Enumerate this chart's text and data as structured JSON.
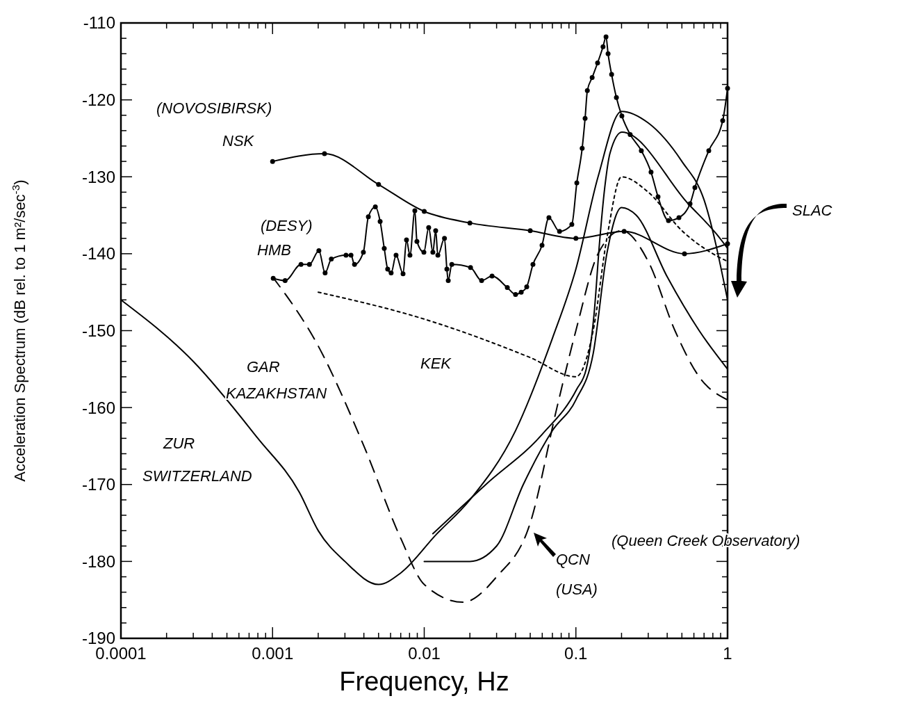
{
  "chart_data": {
    "type": "line",
    "xlabel": "Frequency, Hz",
    "ylabel": "Acceleration Spectrum (dB rel. to 1 m²/sec$^{-3}$)",
    "log": "x",
    "xlim": [
      0.0001,
      1
    ],
    "ylim": [
      -190,
      -110
    ],
    "xticks": [
      0.0001,
      {
        "value": 0.0002,
        "label": null
      },
      {
        "value": 0.0003,
        "label": null
      },
      {
        "value": 0.0004,
        "label": null
      },
      {
        "value": 0.0005,
        "label": null
      },
      {
        "value": 0.0006,
        "label": null
      },
      {
        "value": 0.0007,
        "label": null
      },
      {
        "value": 0.0008,
        "label": null
      },
      {
        "value": 0.0009,
        "label": null
      },
      0.001,
      {
        "value": 0.002,
        "label": null
      },
      {
        "value": 0.003,
        "label": null
      },
      {
        "value": 0.004,
        "label": null
      },
      {
        "value": 0.005,
        "label": null
      },
      {
        "value": 0.006,
        "label": null
      },
      {
        "value": 0.007,
        "label": null
      },
      {
        "value": 0.008,
        "label": null
      },
      {
        "value": 0.009,
        "label": null
      },
      0.01,
      {
        "value": 0.02,
        "label": null
      },
      {
        "value": 0.03,
        "label": null
      },
      {
        "value": 0.04,
        "label": null
      },
      {
        "value": 0.05,
        "label": null
      },
      {
        "value": 0.06,
        "label": null
      },
      {
        "value": 0.07,
        "label": null
      },
      {
        "value": 0.08,
        "label": null
      },
      {
        "value": 0.09,
        "label": null
      },
      0.1,
      {
        "value": 0.2,
        "label": null
      },
      {
        "value": 0.3,
        "label": null
      },
      {
        "value": 0.4,
        "label": null
      },
      {
        "value": 0.5,
        "label": null
      },
      {
        "value": 0.6,
        "label": null
      },
      {
        "value": 0.7,
        "label": null
      },
      {
        "value": 0.8,
        "label": null
      },
      {
        "value": 0.9,
        "label": null
      },
      1
    ],
    "yticks": [
      -190,
      {
        "value": -188,
        "label": null
      },
      {
        "value": -186,
        "label": null
      },
      {
        "value": -184,
        "label": null
      },
      {
        "value": -182,
        "label": null
      },
      -180,
      {
        "value": -178,
        "label": null
      },
      {
        "value": -176,
        "label": null
      },
      {
        "value": -174,
        "label": null
      },
      {
        "value": -172,
        "label": null
      },
      -170,
      {
        "value": -168,
        "label": null
      },
      {
        "value": -166,
        "label": null
      },
      {
        "value": -164,
        "label": null
      },
      {
        "value": -162,
        "label": null
      },
      -160,
      {
        "value": -158,
        "label": null
      },
      {
        "value": -156,
        "label": null
      },
      {
        "value": -154,
        "label": null
      },
      {
        "value": -152,
        "label": null
      },
      -150,
      {
        "value": -148,
        "label": null
      },
      {
        "value": -146,
        "label": null
      },
      {
        "value": -144,
        "label": null
      },
      {
        "value": -142,
        "label": null
      },
      -140,
      {
        "value": -138,
        "label": null
      },
      {
        "value": -136,
        "label": null
      },
      {
        "value": -134,
        "label": null
      },
      {
        "value": -132,
        "label": null
      },
      -130,
      {
        "value": -128,
        "label": null
      },
      {
        "value": -126,
        "label": null
      },
      {
        "value": -124,
        "label": null
      },
      {
        "value": -122,
        "label": null
      },
      -120,
      {
        "value": -118,
        "label": null
      },
      {
        "value": -116,
        "label": null
      },
      {
        "value": -114,
        "label": null
      },
      {
        "value": -112,
        "label": null
      },
      -110
    ],
    "grid": false,
    "series": [
      {
        "color": "#000000",
        "marker": "circle",
        "line_style": "solid",
        "x": [
          0.001,
          0.0022,
          0.005,
          0.01,
          0.02,
          0.05,
          0.1,
          0.208,
          0.52,
          1
        ],
        "values": [
          -128,
          -127,
          -131,
          -134.5,
          -136,
          -137,
          -138,
          -137.1,
          -140,
          -138.7
        ]
      },
      {
        "color": "#000000",
        "marker": "circle",
        "line_style": "solid",
        "x": [
          0.00101,
          0.00121,
          0.00154,
          0.00175,
          0.00202,
          0.00222,
          0.00244,
          0.00305,
          0.00329,
          0.00347,
          0.00397,
          0.00428,
          0.00476,
          0.00512,
          0.00545,
          0.00574,
          0.00605,
          0.00652,
          0.00725,
          0.00764,
          0.00805,
          0.00867,
          0.00895,
          0.00995,
          0.0107,
          0.0114,
          0.0119,
          0.0123,
          0.0136,
          0.0141,
          0.0144,
          0.0152,
          0.0202,
          0.0239,
          0.028,
          0.0353,
          0.04,
          0.0436,
          0.0474,
          0.0521,
          0.0598,
          0.0664,
          0.078,
          0.094,
          0.1014,
          0.11,
          0.115,
          0.119,
          0.128,
          0.139,
          0.151,
          0.158,
          0.163,
          0.172,
          0.185,
          0.201,
          0.228,
          0.27,
          0.313,
          0.348,
          0.408,
          0.478,
          0.566,
          0.609,
          0.752,
          0.929,
          1
        ],
        "values": [
          -143.2,
          -143.5,
          -141.4,
          -141.4,
          -139.6,
          -142.5,
          -140.7,
          -140.2,
          -140.2,
          -141.4,
          -139.8,
          -135.2,
          -133.9,
          -135.8,
          -139.3,
          -142,
          -142.5,
          -140.2,
          -142.6,
          -138.2,
          -140.2,
          -134.4,
          -138.4,
          -139.8,
          -136.6,
          -139.8,
          -137,
          -140.2,
          -138,
          -142,
          -143.5,
          -141.4,
          -141.8,
          -143.5,
          -142.9,
          -144.4,
          -145.3,
          -145,
          -144.3,
          -141.4,
          -138.9,
          -135.3,
          -137.1,
          -136.2,
          -130.8,
          -126.3,
          -122.4,
          -118.8,
          -117.1,
          -115.2,
          -113.1,
          -111.8,
          -114,
          -116.7,
          -119.7,
          -122.1,
          -124.5,
          -126.6,
          -129.4,
          -132.6,
          -135.7,
          -135.3,
          -133.5,
          -131.4,
          -126.6,
          -122.7,
          -118.5
        ]
      },
      {
        "color": "#000000",
        "marker": "none",
        "line_style": "dotted",
        "x": [
          0.002,
          0.01,
          0.05,
          0.1,
          0.13,
          0.16,
          0.2,
          0.3,
          0.5,
          0.8,
          1
        ],
        "values": [
          -145,
          -148.5,
          -153.5,
          -156,
          -150,
          -138,
          -130,
          -132,
          -137,
          -140,
          -141
        ]
      },
      {
        "color": "#000000",
        "marker": "none",
        "line_style": "dashed",
        "x": [
          0.001,
          0.002,
          0.004,
          0.007,
          0.01,
          0.018,
          0.03,
          0.05,
          0.075,
          0.1,
          0.14,
          0.2,
          0.3,
          0.45,
          0.65,
          1
        ],
        "values": [
          -143,
          -152,
          -165,
          -177,
          -183,
          -185.3,
          -182,
          -175,
          -160,
          -150,
          -140,
          -137,
          -141,
          -150,
          -156,
          -159
        ]
      },
      {
        "color": "#000000",
        "marker": "none",
        "line_style": "solid",
        "x": [
          0.0001,
          0.0003,
          0.0008,
          0.0015,
          0.002,
          0.003,
          0.005,
          0.007,
          0.012,
          0.02,
          0.04,
          0.07,
          0.1,
          0.14,
          0.2,
          0.3,
          0.5,
          0.7,
          1
        ],
        "values": [
          -146,
          -154,
          -164,
          -171,
          -176,
          -180,
          -183,
          -181.5,
          -176.5,
          -172,
          -163,
          -151,
          -142,
          -130,
          -121.5,
          -123,
          -128,
          -133,
          -146
        ]
      },
      {
        "color": "#000000",
        "marker": "none",
        "line_style": "solid",
        "x": [
          0.01,
          0.02,
          0.03,
          0.045,
          0.07,
          0.1,
          0.13,
          0.16,
          0.2,
          0.25,
          0.4,
          0.65,
          1
        ],
        "values": [
          -180,
          -180,
          -178,
          -170,
          -163,
          -159,
          -153,
          -140,
          -134,
          -135,
          -143,
          -150,
          -155
        ]
      },
      {
        "color": "#000000",
        "marker": "none",
        "line_style": "solid",
        "x": [
          0.0114,
          0.0258,
          0.0598,
          0.1014,
          0.117,
          0.132,
          0.143,
          0.155,
          0.168,
          0.201,
          0.55,
          0.85,
          1
        ],
        "values": [
          -176.4,
          -169.9,
          -163.5,
          -157.6,
          -155,
          -147.7,
          -138.7,
          -131.4,
          -126.9,
          -124.2,
          -133.5,
          -137.5,
          -139.3
        ]
      }
    ],
    "annotations": [
      "(NOVOSIBIRSK)",
      "NSK",
      "(DESY)",
      "HMB",
      "KEK",
      "GAR",
      "KAZAKHSTAN",
      "ZUR",
      "SWITZERLAND",
      "QCN",
      "(USA)",
      "(Queen Creek Observatory)",
      "SLAC"
    ]
  }
}
